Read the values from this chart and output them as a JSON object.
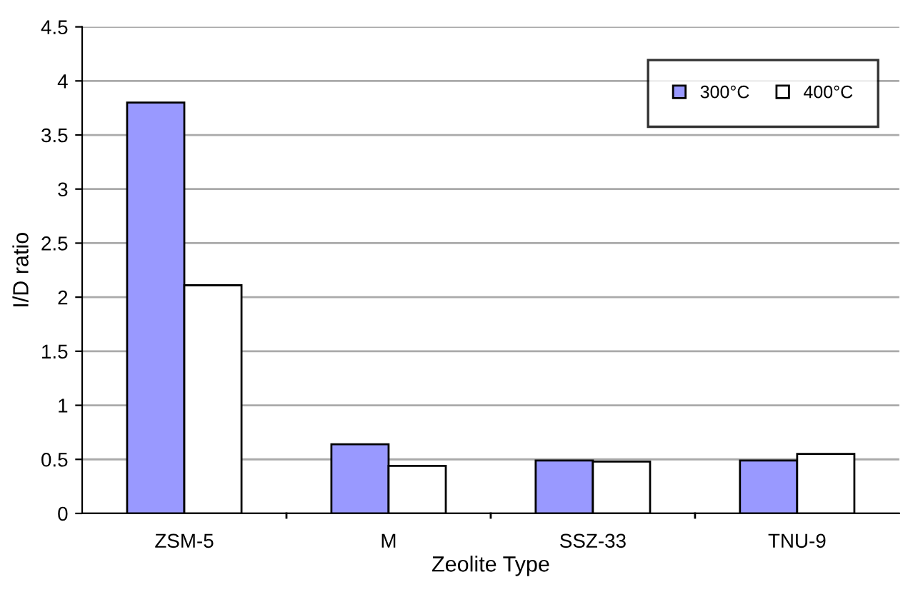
{
  "chart_data": {
    "type": "bar",
    "xlabel": "Zeolite Type",
    "ylabel": "I/D ratio",
    "categories": [
      "ZSM-5",
      "M",
      "SSZ-33",
      "TNU-9"
    ],
    "series": [
      {
        "name": "300°C",
        "color": "#9999ff",
        "values": [
          3.8,
          0.64,
          0.49,
          0.49
        ]
      },
      {
        "name": "400°C",
        "color": "#ffffff",
        "values": [
          2.11,
          0.44,
          0.48,
          0.55
        ]
      }
    ],
    "ylim": [
      0,
      4.5
    ],
    "yticks": [
      0,
      0.5,
      1,
      1.5,
      2,
      2.5,
      3,
      3.5,
      4,
      4.5
    ],
    "grid": "y",
    "legend": "top right"
  }
}
